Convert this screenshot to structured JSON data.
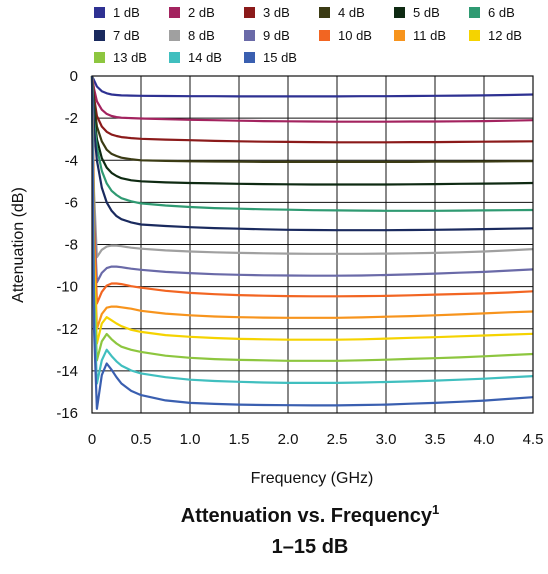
{
  "chart_data": {
    "type": "line",
    "title": "Attenuation vs. Frequency",
    "title_superscript": "1",
    "subtitle": "1–15 dB",
    "xlabel": "Frequency (GHz)",
    "ylabel": "Attenuation (dB)",
    "xlim": [
      0,
      4.5
    ],
    "ylim": [
      -16,
      0
    ],
    "x_ticks": [
      "0",
      "0.5",
      "1.0",
      "1.5",
      "2.0",
      "2.5",
      "3.0",
      "3.5",
      "4.0",
      "4.5"
    ],
    "y_ticks": [
      "0",
      "-2",
      "-4",
      "-6",
      "-8",
      "-10",
      "-12",
      "-14",
      "-16"
    ],
    "grid": true,
    "legend_position": "top",
    "x": [
      0.0,
      0.02,
      0.05,
      0.1,
      0.15,
      0.2,
      0.25,
      0.3,
      0.4,
      0.5,
      0.75,
      1.0,
      1.25,
      1.5,
      1.75,
      2.0,
      2.25,
      2.5,
      2.75,
      3.0,
      3.25,
      3.5,
      3.75,
      4.0,
      4.25,
      4.5
    ],
    "series": [
      {
        "name": "1 dB",
        "color": "#2e3192",
        "values": [
          0.0,
          -0.2,
          -0.5,
          -0.72,
          -0.82,
          -0.88,
          -0.9,
          -0.92,
          -0.93,
          -0.94,
          -0.95,
          -0.96,
          -0.96,
          -0.97,
          -0.97,
          -0.97,
          -0.97,
          -0.97,
          -0.96,
          -0.96,
          -0.95,
          -0.94,
          -0.93,
          -0.92,
          -0.9,
          -0.88
        ]
      },
      {
        "name": "2 dB",
        "color": "#a3235f",
        "values": [
          0.0,
          -0.6,
          -1.2,
          -1.6,
          -1.8,
          -1.9,
          -1.95,
          -1.98,
          -2.0,
          -2.02,
          -2.05,
          -2.08,
          -2.1,
          -2.12,
          -2.14,
          -2.15,
          -2.16,
          -2.17,
          -2.17,
          -2.17,
          -2.16,
          -2.16,
          -2.15,
          -2.14,
          -2.12,
          -2.1
        ]
      },
      {
        "name": "3 dB",
        "color": "#8b1a1a",
        "values": [
          0.0,
          -1.0,
          -1.9,
          -2.4,
          -2.65,
          -2.78,
          -2.85,
          -2.9,
          -2.95,
          -2.98,
          -3.02,
          -3.05,
          -3.08,
          -3.1,
          -3.12,
          -3.13,
          -3.14,
          -3.15,
          -3.15,
          -3.15,
          -3.14,
          -3.14,
          -3.13,
          -3.12,
          -3.11,
          -3.1
        ]
      },
      {
        "name": "4 dB",
        "color": "#3b3b14",
        "values": [
          0.0,
          -1.3,
          -2.4,
          -3.1,
          -3.5,
          -3.7,
          -3.8,
          -3.88,
          -3.95,
          -4.0,
          -4.03,
          -4.05,
          -4.06,
          -4.07,
          -4.08,
          -4.08,
          -4.08,
          -4.08,
          -4.08,
          -4.08,
          -4.08,
          -4.07,
          -4.07,
          -4.06,
          -4.05,
          -4.04
        ]
      },
      {
        "name": "5 dB",
        "color": "#0e2a12",
        "values": [
          0.0,
          -1.8,
          -3.0,
          -3.9,
          -4.35,
          -4.6,
          -4.75,
          -4.85,
          -4.95,
          -5.0,
          -5.05,
          -5.08,
          -5.1,
          -5.12,
          -5.13,
          -5.14,
          -5.15,
          -5.15,
          -5.15,
          -5.15,
          -5.14,
          -5.13,
          -5.12,
          -5.11,
          -5.1,
          -5.08
        ]
      },
      {
        "name": "6 dB",
        "color": "#2f9a72",
        "values": [
          0.0,
          -2.1,
          -3.4,
          -4.5,
          -5.1,
          -5.45,
          -5.65,
          -5.8,
          -5.95,
          -6.05,
          -6.15,
          -6.22,
          -6.27,
          -6.3,
          -6.33,
          -6.35,
          -6.37,
          -6.38,
          -6.39,
          -6.4,
          -6.4,
          -6.4,
          -6.39,
          -6.38,
          -6.37,
          -6.36
        ]
      },
      {
        "name": "7 dB",
        "color": "#1a2a5e",
        "values": [
          0.0,
          -2.5,
          -4.0,
          -5.3,
          -6.0,
          -6.4,
          -6.65,
          -6.8,
          -6.95,
          -7.05,
          -7.12,
          -7.18,
          -7.22,
          -7.25,
          -7.28,
          -7.3,
          -7.31,
          -7.32,
          -7.32,
          -7.32,
          -7.31,
          -7.3,
          -7.29,
          -7.27,
          -7.25,
          -7.23
        ]
      },
      {
        "name": "8 dB",
        "color": "#a0a0a0",
        "values": [
          0.0,
          -5.5,
          -8.6,
          -8.25,
          -8.1,
          -8.05,
          -8.05,
          -8.08,
          -8.15,
          -8.2,
          -8.28,
          -8.33,
          -8.37,
          -8.4,
          -8.42,
          -8.43,
          -8.44,
          -8.44,
          -8.44,
          -8.43,
          -8.42,
          -8.4,
          -8.37,
          -8.33,
          -8.28,
          -8.22
        ]
      },
      {
        "name": "9 dB",
        "color": "#6a6aa8",
        "values": [
          0.0,
          -6.5,
          -9.8,
          -9.35,
          -9.12,
          -9.05,
          -9.05,
          -9.08,
          -9.15,
          -9.2,
          -9.3,
          -9.36,
          -9.41,
          -9.44,
          -9.46,
          -9.47,
          -9.48,
          -9.48,
          -9.47,
          -9.45,
          -9.42,
          -9.38,
          -9.34,
          -9.3,
          -9.24,
          -9.18
        ]
      },
      {
        "name": "10 dB",
        "color": "#f26522",
        "values": [
          0.0,
          -7.0,
          -10.8,
          -10.25,
          -9.95,
          -9.85,
          -9.85,
          -9.88,
          -9.98,
          -10.05,
          -10.2,
          -10.3,
          -10.36,
          -10.4,
          -10.43,
          -10.45,
          -10.46,
          -10.46,
          -10.45,
          -10.44,
          -10.41,
          -10.38,
          -10.35,
          -10.32,
          -10.28,
          -10.22
        ]
      },
      {
        "name": "11 dB",
        "color": "#f7941d",
        "values": [
          0.0,
          -8.0,
          -12.0,
          -11.3,
          -11.0,
          -10.95,
          -10.95,
          -10.98,
          -11.05,
          -11.15,
          -11.28,
          -11.36,
          -11.42,
          -11.45,
          -11.47,
          -11.48,
          -11.48,
          -11.48,
          -11.46,
          -11.43,
          -11.4,
          -11.36,
          -11.32,
          -11.27,
          -11.22,
          -11.18
        ]
      },
      {
        "name": "12 dB",
        "color": "#f5d300",
        "values": [
          0.0,
          -9.0,
          -12.7,
          -11.75,
          -11.45,
          -11.6,
          -11.75,
          -11.88,
          -12.05,
          -12.15,
          -12.3,
          -12.38,
          -12.44,
          -12.48,
          -12.5,
          -12.52,
          -12.52,
          -12.52,
          -12.5,
          -12.47,
          -12.43,
          -12.4,
          -12.36,
          -12.32,
          -12.28,
          -12.24
        ]
      },
      {
        "name": "13 dB",
        "color": "#8dc63f",
        "values": [
          0.0,
          -10.0,
          -13.5,
          -12.6,
          -12.25,
          -12.5,
          -12.7,
          -12.85,
          -13.0,
          -13.1,
          -13.28,
          -13.38,
          -13.44,
          -13.48,
          -13.5,
          -13.52,
          -13.52,
          -13.52,
          -13.5,
          -13.47,
          -13.43,
          -13.4,
          -13.36,
          -13.31,
          -13.25,
          -13.2
        ]
      },
      {
        "name": "14 dB",
        "color": "#40bfbf",
        "values": [
          0.0,
          -11.0,
          -14.6,
          -13.5,
          -13.0,
          -13.3,
          -13.55,
          -13.75,
          -13.98,
          -14.12,
          -14.3,
          -14.42,
          -14.48,
          -14.52,
          -14.55,
          -14.57,
          -14.57,
          -14.57,
          -14.55,
          -14.53,
          -14.5,
          -14.46,
          -14.42,
          -14.37,
          -14.31,
          -14.25
        ]
      },
      {
        "name": "15 dB",
        "color": "#3a5fb0",
        "values": [
          0.0,
          -12.0,
          -15.8,
          -14.2,
          -13.65,
          -13.95,
          -14.3,
          -14.6,
          -14.95,
          -15.15,
          -15.4,
          -15.52,
          -15.57,
          -15.6,
          -15.62,
          -15.63,
          -15.64,
          -15.64,
          -15.62,
          -15.6,
          -15.56,
          -15.52,
          -15.47,
          -15.41,
          -15.33,
          -15.25
        ]
      }
    ]
  }
}
